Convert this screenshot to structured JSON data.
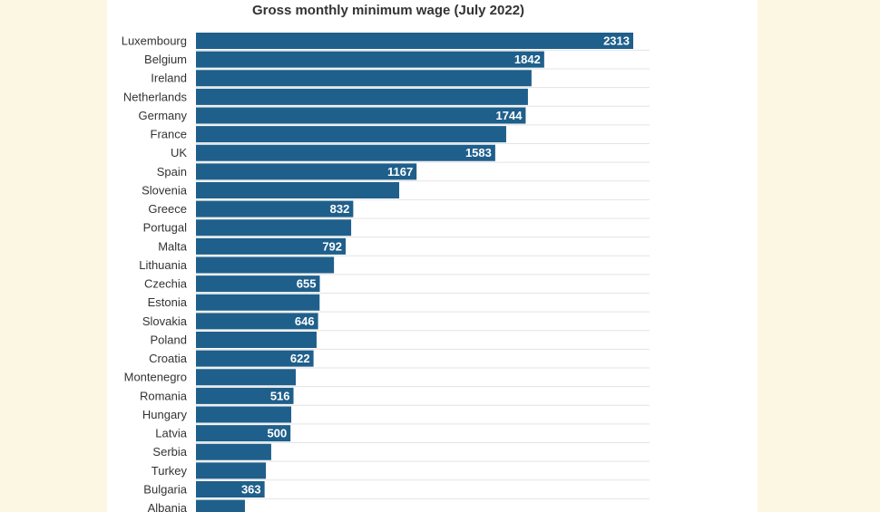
{
  "chart_data": {
    "type": "hbar",
    "title": "Gross monthly minimum wage (July 2022)",
    "categories": [
      "Luxembourg",
      "Belgium",
      "Ireland",
      "Netherlands",
      "Germany",
      "France",
      "UK",
      "Spain",
      "Slovenia",
      "Greece",
      "Portugal",
      "Malta",
      "Lithuania",
      "Czechia",
      "Estonia",
      "Slovakia",
      "Poland",
      "Croatia",
      "Montenegro",
      "Romania",
      "Hungary",
      "Latvia",
      "Serbia",
      "Turkey",
      "Bulgaria",
      "Albania"
    ],
    "values": [
      2313,
      1842,
      1775,
      1756,
      1744,
      1641,
      1583,
      1167,
      1075,
      832,
      821,
      792,
      730,
      655,
      654,
      646,
      638,
      622,
      528,
      516,
      504,
      500,
      398,
      370,
      363,
      259
    ],
    "value_labels": [
      "2313",
      "1842",
      null,
      null,
      "1744",
      null,
      "1583",
      "1167",
      null,
      "832",
      null,
      "792",
      null,
      "655",
      null,
      "646",
      null,
      "622",
      null,
      "516",
      null,
      "500",
      null,
      null,
      "363",
      null
    ],
    "color": "#1f5f8b"
  }
}
